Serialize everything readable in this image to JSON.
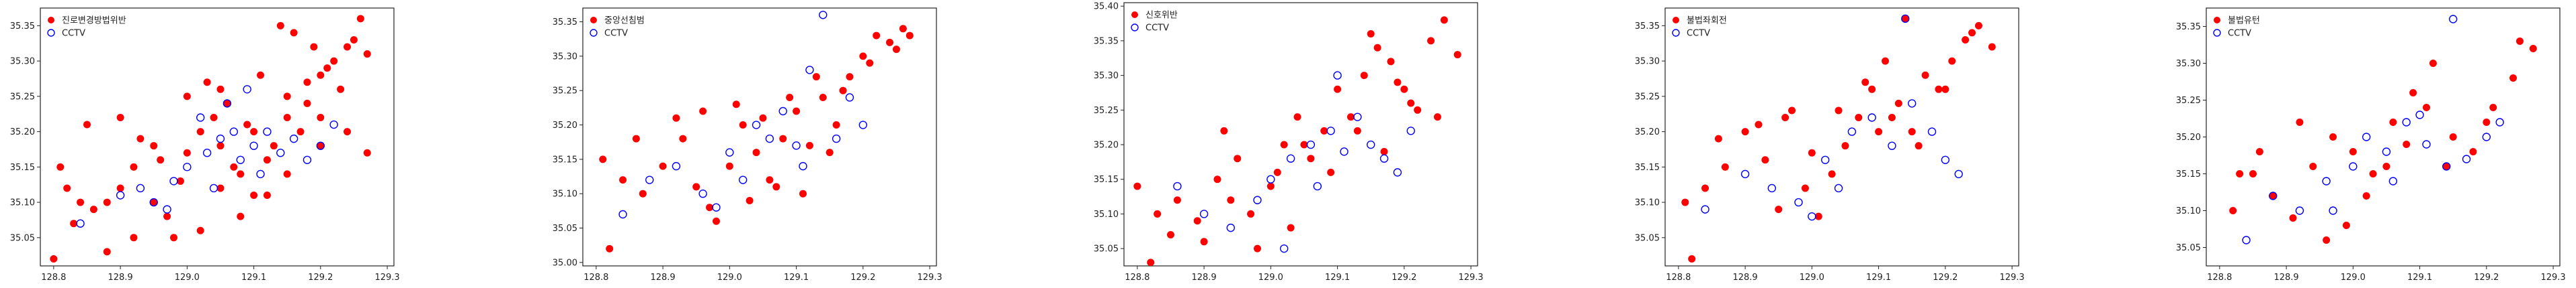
{
  "figure": {
    "background": "#ffffff"
  },
  "colors": {
    "violation": "#ff0000",
    "cctv": "#0000ff",
    "frame": "#222222"
  },
  "chart_data": [
    {
      "type": "scatter",
      "xlim": [
        128.78,
        129.31
      ],
      "ylim": [
        35.01,
        35.375
      ],
      "xticks": [
        128.8,
        128.9,
        129.0,
        129.1,
        129.2,
        129.3
      ],
      "xtick_labels": [
        "128.8",
        "128.9",
        "129.0",
        "129.1",
        "129.2",
        "129.3"
      ],
      "yticks": [
        35.05,
        35.1,
        35.15,
        35.2,
        35.25,
        35.3,
        35.35
      ],
      "ytick_labels": [
        "35.05",
        "35.10",
        "35.15",
        "35.20",
        "35.25",
        "35.30",
        "35.35"
      ],
      "legend_position": "upper-left",
      "series": [
        {
          "name": "진로변경방법위반",
          "marker": "filled-circle",
          "color": "#ff0000",
          "x": [
            128.81,
            128.82,
            128.84,
            128.86,
            128.88,
            128.9,
            128.92,
            128.95,
            128.97,
            128.99,
            129.0,
            129.02,
            129.04,
            129.05,
            129.07,
            129.08,
            129.1,
            129.12,
            129.13,
            129.15,
            129.17,
            129.18,
            129.2,
            129.22,
            129.24,
            129.25,
            129.27,
            128.85,
            128.9,
            128.93,
            128.96,
            129.0,
            129.03,
            129.06,
            129.09,
            129.11,
            129.14,
            129.16,
            129.19,
            129.21,
            129.23,
            129.26,
            129.15,
            129.18,
            129.2,
            129.24,
            129.27,
            128.83,
            128.8,
            129.02,
            128.98,
            129.08,
            129.12,
            129.05,
            128.95,
            129.1,
            129.15,
            129.2,
            129.05,
            128.92,
            128.88
          ],
          "y": [
            35.15,
            35.12,
            35.1,
            35.09,
            35.1,
            35.12,
            35.15,
            35.1,
            35.08,
            35.13,
            35.17,
            35.2,
            35.22,
            35.18,
            35.15,
            35.14,
            35.2,
            35.16,
            35.18,
            35.22,
            35.2,
            35.24,
            35.28,
            35.3,
            35.32,
            35.33,
            35.31,
            35.21,
            35.22,
            35.19,
            35.16,
            35.25,
            35.27,
            35.24,
            35.21,
            35.28,
            35.35,
            35.34,
            35.32,
            35.29,
            35.26,
            35.36,
            35.25,
            35.27,
            35.22,
            35.2,
            35.17,
            35.07,
            35.02,
            35.06,
            35.05,
            35.08,
            35.11,
            35.12,
            35.18,
            35.11,
            35.14,
            35.18,
            35.26,
            35.05,
            35.03
          ]
        },
        {
          "name": "CCTV",
          "marker": "open-circle",
          "color": "#0000ff",
          "x": [
            128.84,
            128.9,
            128.95,
            128.98,
            129.0,
            129.03,
            129.05,
            129.08,
            129.1,
            129.12,
            129.14,
            129.16,
            129.18,
            129.2,
            129.22,
            129.02,
            129.06,
            129.09,
            129.11,
            128.93,
            128.97,
            129.04,
            129.07
          ],
          "y": [
            35.07,
            35.11,
            35.1,
            35.13,
            35.15,
            35.17,
            35.19,
            35.16,
            35.18,
            35.2,
            35.17,
            35.19,
            35.16,
            35.18,
            35.21,
            35.22,
            35.24,
            35.26,
            35.14,
            35.12,
            35.09,
            35.12,
            35.2
          ]
        }
      ]
    },
    {
      "type": "scatter",
      "xlim": [
        128.78,
        129.31
      ],
      "ylim": [
        34.995,
        35.37
      ],
      "xticks": [
        128.8,
        128.9,
        129.0,
        129.1,
        129.2,
        129.3
      ],
      "xtick_labels": [
        "128.8",
        "128.9",
        "129.0",
        "129.1",
        "129.2",
        "129.3"
      ],
      "yticks": [
        35.0,
        35.05,
        35.1,
        35.15,
        35.2,
        35.25,
        35.3,
        35.35
      ],
      "ytick_labels": [
        "35.00",
        "35.05",
        "35.10",
        "35.15",
        "35.20",
        "35.25",
        "35.30",
        "35.35"
      ],
      "legend_position": "upper-left",
      "series": [
        {
          "name": "중앙선침범",
          "marker": "filled-circle",
          "color": "#ff0000",
          "x": [
            128.81,
            128.84,
            128.87,
            128.9,
            128.93,
            128.95,
            128.97,
            129.0,
            129.02,
            129.04,
            129.06,
            129.08,
            129.1,
            129.12,
            129.14,
            129.16,
            129.18,
            129.2,
            129.22,
            129.24,
            129.26,
            128.86,
            128.92,
            128.96,
            129.01,
            129.05,
            129.09,
            129.13,
            129.17,
            129.21,
            129.25,
            129.27,
            128.98,
            129.03,
            129.07,
            129.11,
            129.15,
            128.82
          ],
          "y": [
            35.15,
            35.12,
            35.1,
            35.14,
            35.18,
            35.11,
            35.08,
            35.14,
            35.2,
            35.16,
            35.12,
            35.18,
            35.22,
            35.17,
            35.24,
            35.2,
            35.27,
            35.3,
            35.33,
            35.32,
            35.34,
            35.18,
            35.21,
            35.22,
            35.23,
            35.21,
            35.24,
            35.27,
            35.25,
            35.29,
            35.31,
            35.33,
            35.06,
            35.09,
            35.11,
            35.1,
            35.16,
            35.02
          ]
        },
        {
          "name": "CCTV",
          "marker": "open-circle",
          "color": "#0000ff",
          "x": [
            128.84,
            128.88,
            128.92,
            128.96,
            129.0,
            129.04,
            129.08,
            129.1,
            129.12,
            129.14,
            129.16,
            129.18,
            129.2,
            128.98,
            129.02,
            129.06,
            129.11
          ],
          "y": [
            35.07,
            35.12,
            35.14,
            35.1,
            35.16,
            35.2,
            35.22,
            35.17,
            35.28,
            35.36,
            35.18,
            35.24,
            35.2,
            35.08,
            35.12,
            35.18,
            35.14
          ]
        }
      ]
    },
    {
      "type": "scatter",
      "xlim": [
        128.78,
        129.31
      ],
      "ylim": [
        35.025,
        35.405
      ],
      "xticks": [
        128.8,
        128.9,
        129.0,
        129.1,
        129.2,
        129.3
      ],
      "xtick_labels": [
        "128.8",
        "128.9",
        "129.0",
        "129.1",
        "129.2",
        "129.3"
      ],
      "yticks": [
        35.05,
        35.1,
        35.15,
        35.2,
        35.25,
        35.3,
        35.35,
        35.4
      ],
      "ytick_labels": [
        "35.05",
        "35.10",
        "35.15",
        "35.20",
        "35.25",
        "35.30",
        "35.35",
        "35.40"
      ],
      "legend_position": "upper-left",
      "series": [
        {
          "name": "신호위반",
          "marker": "filled-circle",
          "color": "#ff0000",
          "x": [
            128.8,
            128.83,
            128.86,
            128.89,
            128.92,
            128.95,
            128.97,
            129.0,
            129.02,
            129.04,
            129.06,
            129.08,
            129.1,
            129.12,
            129.14,
            129.16,
            129.18,
            129.2,
            129.22,
            129.24,
            129.26,
            129.28,
            128.85,
            128.9,
            128.94,
            128.98,
            129.01,
            129.05,
            129.09,
            129.13,
            129.17,
            129.21,
            129.25,
            129.15,
            129.19,
            128.82,
            128.93,
            129.03
          ],
          "y": [
            35.14,
            35.1,
            35.12,
            35.09,
            35.15,
            35.18,
            35.1,
            35.14,
            35.2,
            35.24,
            35.18,
            35.22,
            35.28,
            35.24,
            35.3,
            35.34,
            35.32,
            35.28,
            35.25,
            35.35,
            35.38,
            35.33,
            35.07,
            35.06,
            35.12,
            35.05,
            35.16,
            35.2,
            35.16,
            35.22,
            35.19,
            35.26,
            35.24,
            35.36,
            35.29,
            35.03,
            35.22,
            35.08
          ]
        },
        {
          "name": "CCTV",
          "marker": "open-circle",
          "color": "#0000ff",
          "x": [
            128.86,
            128.9,
            128.94,
            128.98,
            129.0,
            129.03,
            129.06,
            129.09,
            129.11,
            129.13,
            129.15,
            129.17,
            129.19,
            129.21,
            129.02,
            129.07,
            129.1
          ],
          "y": [
            35.14,
            35.1,
            35.08,
            35.12,
            35.15,
            35.18,
            35.2,
            35.22,
            35.19,
            35.24,
            35.2,
            35.18,
            35.16,
            35.22,
            35.05,
            35.14,
            35.3
          ]
        }
      ]
    },
    {
      "type": "scatter",
      "xlim": [
        128.78,
        129.31
      ],
      "ylim": [
        35.01,
        35.375
      ],
      "xticks": [
        128.8,
        128.9,
        129.0,
        129.1,
        129.2,
        129.3
      ],
      "xtick_labels": [
        "128.8",
        "128.9",
        "129.0",
        "129.1",
        "129.2",
        "129.3"
      ],
      "yticks": [
        35.05,
        35.1,
        35.15,
        35.2,
        35.25,
        35.3,
        35.35
      ],
      "ytick_labels": [
        "35.05",
        "35.10",
        "35.15",
        "35.20",
        "35.25",
        "35.30",
        "35.35"
      ],
      "legend_position": "upper-left",
      "series": [
        {
          "name": "불법좌회전",
          "marker": "filled-circle",
          "color": "#ff0000",
          "x": [
            128.81,
            128.84,
            128.87,
            128.9,
            128.93,
            128.96,
            128.99,
            129.01,
            129.03,
            129.05,
            129.07,
            129.09,
            129.11,
            129.13,
            129.15,
            129.17,
            129.19,
            129.21,
            129.23,
            129.25,
            129.27,
            128.86,
            128.92,
            128.97,
            129.0,
            129.04,
            129.08,
            129.12,
            129.16,
            129.2,
            129.24,
            128.82,
            128.95,
            129.1,
            129.14
          ],
          "y": [
            35.1,
            35.12,
            35.15,
            35.2,
            35.16,
            35.22,
            35.12,
            35.08,
            35.14,
            35.18,
            35.22,
            35.26,
            35.3,
            35.24,
            35.2,
            35.28,
            35.26,
            35.3,
            35.33,
            35.35,
            35.32,
            35.19,
            35.21,
            35.23,
            35.17,
            35.23,
            35.27,
            35.22,
            35.18,
            35.26,
            35.34,
            35.02,
            35.09,
            35.2,
            35.36
          ]
        },
        {
          "name": "CCTV",
          "marker": "open-circle",
          "color": "#0000ff",
          "x": [
            128.84,
            128.9,
            128.94,
            128.98,
            129.02,
            129.06,
            129.09,
            129.12,
            129.15,
            129.18,
            129.2,
            129.22,
            129.0,
            129.04,
            129.14
          ],
          "y": [
            35.09,
            35.14,
            35.12,
            35.1,
            35.16,
            35.2,
            35.22,
            35.18,
            35.24,
            35.2,
            35.16,
            35.14,
            35.08,
            35.12,
            35.36
          ]
        }
      ]
    },
    {
      "type": "scatter",
      "xlim": [
        128.78,
        129.31
      ],
      "ylim": [
        35.025,
        35.375
      ],
      "xticks": [
        128.8,
        128.9,
        129.0,
        129.1,
        129.2,
        129.3
      ],
      "xtick_labels": [
        "128.8",
        "128.9",
        "129.0",
        "129.1",
        "129.2",
        "129.3"
      ],
      "yticks": [
        35.05,
        35.1,
        35.15,
        35.2,
        35.25,
        35.3,
        35.35
      ],
      "ytick_labels": [
        "35.05",
        "35.10",
        "35.15",
        "35.20",
        "35.25",
        "35.30",
        "35.35"
      ],
      "legend_position": "upper-left",
      "series": [
        {
          "name": "불법유턴",
          "marker": "filled-circle",
          "color": "#ff0000",
          "x": [
            128.82,
            128.85,
            128.88,
            128.91,
            128.94,
            128.97,
            129.0,
            129.03,
            129.06,
            129.09,
            129.12,
            129.15,
            129.18,
            129.21,
            129.24,
            129.27,
            128.86,
            128.92,
            128.96,
            129.02,
            129.05,
            129.08,
            129.11,
            129.14,
            129.2,
            129.25,
            128.83,
            128.99
          ],
          "y": [
            35.1,
            35.15,
            35.12,
            35.09,
            35.16,
            35.2,
            35.18,
            35.15,
            35.22,
            35.26,
            35.3,
            35.2,
            35.18,
            35.24,
            35.28,
            35.32,
            35.18,
            35.22,
            35.06,
            35.12,
            35.16,
            35.19,
            35.24,
            35.16,
            35.22,
            35.33,
            35.15,
            35.08
          ]
        },
        {
          "name": "CCTV",
          "marker": "open-circle",
          "color": "#0000ff",
          "x": [
            128.84,
            128.88,
            128.92,
            128.96,
            129.0,
            129.02,
            129.05,
            129.08,
            129.11,
            129.14,
            129.17,
            129.2,
            129.22,
            129.1,
            129.15,
            128.97,
            129.06
          ],
          "y": [
            35.06,
            35.12,
            35.1,
            35.14,
            35.16,
            35.2,
            35.18,
            35.22,
            35.19,
            35.16,
            35.17,
            35.2,
            35.22,
            35.23,
            35.36,
            35.1,
            35.14
          ]
        }
      ]
    }
  ]
}
